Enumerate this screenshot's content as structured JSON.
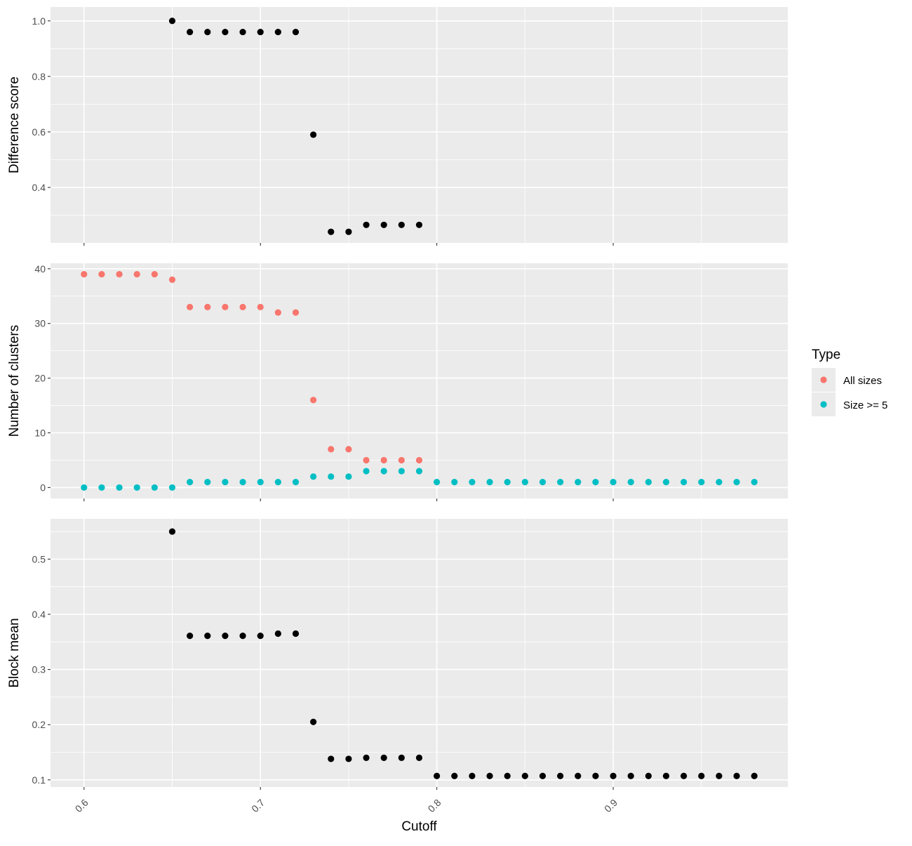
{
  "chart_data": [
    {
      "type": "scatter",
      "ylabel": "Difference score",
      "ylim": [
        0.2,
        1.05
      ],
      "yticks": [
        0.4,
        0.6,
        0.8,
        1.0
      ],
      "ytick_labels": [
        "0.4",
        "0.6",
        "0.8",
        "1.0"
      ],
      "grid": true,
      "series": [
        {
          "color": "#000000",
          "x": [
            0.65,
            0.66,
            0.67,
            0.68,
            0.69,
            0.7,
            0.71,
            0.72,
            0.73,
            0.74,
            0.75,
            0.76,
            0.77,
            0.78,
            0.79
          ],
          "y": [
            1.0,
            0.96,
            0.96,
            0.96,
            0.96,
            0.96,
            0.96,
            0.96,
            0.59,
            0.24,
            0.24,
            0.265,
            0.265,
            0.265,
            0.265
          ]
        }
      ]
    },
    {
      "type": "scatter",
      "ylabel": "Number of clusters",
      "ylim": [
        -2,
        41
      ],
      "yticks": [
        0,
        10,
        20,
        30,
        40
      ],
      "ytick_labels": [
        "0",
        "10",
        "20",
        "30",
        "40"
      ],
      "grid": true,
      "series": [
        {
          "name": "All sizes",
          "color": "#F8766D",
          "x": [
            0.6,
            0.61,
            0.62,
            0.63,
            0.64,
            0.65,
            0.66,
            0.67,
            0.68,
            0.69,
            0.7,
            0.71,
            0.72,
            0.73,
            0.74,
            0.75,
            0.76,
            0.77,
            0.78,
            0.79
          ],
          "y": [
            39,
            39,
            39,
            39,
            39,
            38,
            33,
            33,
            33,
            33,
            33,
            32,
            32,
            16,
            7,
            7,
            5,
            5,
            5,
            5
          ]
        },
        {
          "name": "Size >= 5",
          "color": "#00BFC4",
          "x": [
            0.6,
            0.61,
            0.62,
            0.63,
            0.64,
            0.65,
            0.66,
            0.67,
            0.68,
            0.69,
            0.7,
            0.71,
            0.72,
            0.73,
            0.74,
            0.75,
            0.76,
            0.77,
            0.78,
            0.79,
            0.8,
            0.81,
            0.82,
            0.83,
            0.84,
            0.85,
            0.86,
            0.87,
            0.88,
            0.89,
            0.9,
            0.91,
            0.92,
            0.93,
            0.94,
            0.95,
            0.96,
            0.97,
            0.98
          ],
          "y": [
            0,
            0,
            0,
            0,
            0,
            0,
            1,
            1,
            1,
            1,
            1,
            1,
            1,
            2,
            2,
            2,
            3,
            3,
            3,
            3,
            1,
            1,
            1,
            1,
            1,
            1,
            1,
            1,
            1,
            1,
            1,
            1,
            1,
            1,
            1,
            1,
            1,
            1,
            1
          ]
        }
      ]
    },
    {
      "type": "scatter",
      "xlabel": "Cutoff",
      "ylabel": "Block mean",
      "ylim": [
        0.087,
        0.573
      ],
      "yticks": [
        0.1,
        0.2,
        0.3,
        0.4,
        0.5
      ],
      "ytick_labels": [
        "0.1",
        "0.2",
        "0.3",
        "0.4",
        "0.5"
      ],
      "grid": true,
      "series": [
        {
          "color": "#000000",
          "x": [
            0.65,
            0.66,
            0.67,
            0.68,
            0.69,
            0.7,
            0.71,
            0.72,
            0.73,
            0.74,
            0.75,
            0.76,
            0.77,
            0.78,
            0.79,
            0.8,
            0.81,
            0.82,
            0.83,
            0.84,
            0.85,
            0.86,
            0.87,
            0.88,
            0.89,
            0.9,
            0.91,
            0.92,
            0.93,
            0.94,
            0.95,
            0.96,
            0.97,
            0.98
          ],
          "y": [
            0.55,
            0.361,
            0.361,
            0.361,
            0.361,
            0.361,
            0.365,
            0.365,
            0.205,
            0.138,
            0.138,
            0.14,
            0.14,
            0.14,
            0.14,
            0.107,
            0.107,
            0.107,
            0.107,
            0.107,
            0.107,
            0.107,
            0.107,
            0.107,
            0.107,
            0.107,
            0.107,
            0.107,
            0.107,
            0.107,
            0.107,
            0.107,
            0.107,
            0.107
          ]
        }
      ]
    }
  ],
  "shared_x": {
    "label": "Cutoff",
    "xlim": [
      0.581,
      0.999
    ],
    "ticks": [
      0.6,
      0.7,
      0.8,
      0.9
    ],
    "tick_labels": [
      "0.6",
      "0.7",
      "0.8",
      "0.9"
    ],
    "tick_label_rotation": "-45"
  },
  "legend": {
    "title": "Type",
    "placement": "right",
    "items": [
      {
        "label": "All sizes",
        "color": "#F8766D"
      },
      {
        "label": "Size >= 5",
        "color": "#00BFC4"
      }
    ]
  },
  "colors": {
    "panel_background": "#EBEBEB",
    "gridline": "#FFFFFF"
  }
}
